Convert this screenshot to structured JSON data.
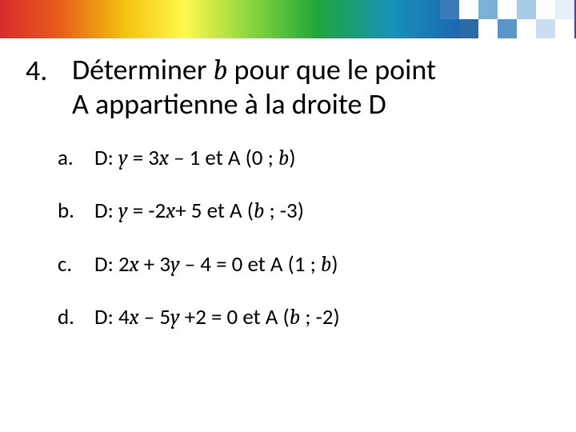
{
  "header": {
    "rainbow_gradient": [
      "#d92b2b",
      "#e85a1a",
      "#f4c40f",
      "#fff94d",
      "#7bd13c",
      "#1fa63a",
      "#1792b8",
      "#1c5fb0",
      "#3b2f8f",
      "#5b3a9a"
    ],
    "pattern_colors": {
      "white": "#ffffff",
      "cells": [
        "#2a6aa8",
        "#3a7bbb",
        "#5a95c9",
        "#7bb0d7",
        "#a6cbe4",
        "#c9def0",
        "#e6f0f8"
      ]
    }
  },
  "question": {
    "number": "4.",
    "title_line1": "Déterminer ",
    "title_var": "b",
    "title_line1_after": " pour que le point",
    "title_line2": "A appartienne à la droite D"
  },
  "items": [
    {
      "letter": "a.",
      "prefix": "D: ",
      "eq_y": "y",
      "eq_mid1": " = 3",
      "eq_x": "x",
      "eq_mid2": " – 1  et A (0 ; ",
      "eq_b": "b",
      "eq_end": ")"
    },
    {
      "letter": "b.",
      "prefix": "D: ",
      "eq_y": "y",
      "eq_mid1": " = -2",
      "eq_x": "x",
      "eq_mid2": "+ 5 et A (",
      "eq_b": "b",
      "eq_end": " ; -3)"
    },
    {
      "letter": "c.",
      "prefix": "D: 2",
      "eq_y": "x",
      "eq_mid1": " + 3",
      "eq_x": "y",
      "eq_mid2": " – 4 = 0 et A (1 ; ",
      "eq_b": "b",
      "eq_end": ")"
    },
    {
      "letter": "d.",
      "prefix": "D: 4",
      "eq_y": "x",
      "eq_mid1": " – 5",
      "eq_x": "y",
      "eq_mid2": " +2 = 0 et A (",
      "eq_b": "b",
      "eq_end": " ; -2)"
    }
  ]
}
